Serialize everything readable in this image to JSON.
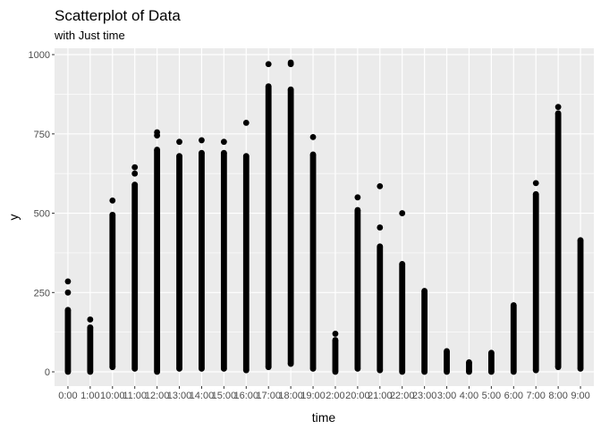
{
  "chart_data": {
    "type": "scatter",
    "title": "Scatterplot of Data",
    "subtitle": "with Just time",
    "xlabel": "time",
    "ylabel": "y",
    "ylim": [
      -45,
      1020
    ],
    "grid": true,
    "y_ticks": [
      0,
      250,
      500,
      750,
      1000
    ],
    "categories": [
      "0:00",
      "1:00",
      "10:00",
      "11:00",
      "12:00",
      "13:00",
      "14:00",
      "15:00",
      "16:00",
      "17:00",
      "18:00",
      "19:00",
      "2:00",
      "20:00",
      "21:00",
      "22:00",
      "23:00",
      "3:00",
      "4:00",
      "5:00",
      "6:00",
      "7:00",
      "8:00",
      "9:00"
    ],
    "x_tick_labels": [
      "0:00",
      "1:00",
      "10:00",
      "11:00",
      "12:00",
      "13:00",
      "14:00",
      "15:00",
      "16:00",
      "17:00",
      "18:00",
      "19:00",
      "2:00",
      "20:00",
      "21:00",
      "22:00",
      "23:00",
      "3:00",
      "4:00",
      "5:00",
      "6:00",
      "7:00",
      "8:00",
      "9:00"
    ],
    "point_color": "#000000",
    "panel_color": "#ebebeb",
    "groups": [
      {
        "x": "0:00",
        "min": 0,
        "max": 195,
        "outliers": [
          250,
          285
        ]
      },
      {
        "x": "1:00",
        "min": 0,
        "max": 140,
        "outliers": [
          165
        ]
      },
      {
        "x": "10:00",
        "min": 15,
        "max": 495,
        "outliers": [
          540
        ]
      },
      {
        "x": "11:00",
        "min": 10,
        "max": 590,
        "outliers": [
          625,
          645
        ]
      },
      {
        "x": "12:00",
        "min": 0,
        "max": 700,
        "outliers": [
          745,
          755
        ]
      },
      {
        "x": "13:00",
        "min": 10,
        "max": 680,
        "outliers": [
          725
        ]
      },
      {
        "x": "14:00",
        "min": 10,
        "max": 690,
        "outliers": [
          730
        ]
      },
      {
        "x": "15:00",
        "min": 10,
        "max": 690,
        "outliers": [
          725
        ]
      },
      {
        "x": "16:00",
        "min": 5,
        "max": 680,
        "outliers": [
          785
        ]
      },
      {
        "x": "17:00",
        "min": 15,
        "max": 900,
        "outliers": [
          970
        ]
      },
      {
        "x": "18:00",
        "min": 25,
        "max": 890,
        "outliers": [
          970,
          975
        ]
      },
      {
        "x": "19:00",
        "min": 10,
        "max": 685,
        "outliers": [
          740
        ]
      },
      {
        "x": "2:00",
        "min": 0,
        "max": 100,
        "outliers": [
          120
        ]
      },
      {
        "x": "20:00",
        "min": 10,
        "max": 510,
        "outliers": [
          550
        ]
      },
      {
        "x": "21:00",
        "min": 5,
        "max": 395,
        "outliers": [
          455,
          585
        ]
      },
      {
        "x": "22:00",
        "min": 0,
        "max": 340,
        "outliers": [
          500
        ]
      },
      {
        "x": "23:00",
        "min": 0,
        "max": 255,
        "outliers": []
      },
      {
        "x": "3:00",
        "min": 0,
        "max": 65,
        "outliers": []
      },
      {
        "x": "4:00",
        "min": 0,
        "max": 30,
        "outliers": []
      },
      {
        "x": "5:00",
        "min": 0,
        "max": 60,
        "outliers": []
      },
      {
        "x": "6:00",
        "min": 0,
        "max": 210,
        "outliers": []
      },
      {
        "x": "7:00",
        "min": 5,
        "max": 560,
        "outliers": [
          595
        ]
      },
      {
        "x": "8:00",
        "min": 15,
        "max": 815,
        "outliers": [
          835
        ]
      },
      {
        "x": "9:00",
        "min": 10,
        "max": 415,
        "outliers": []
      }
    ]
  }
}
